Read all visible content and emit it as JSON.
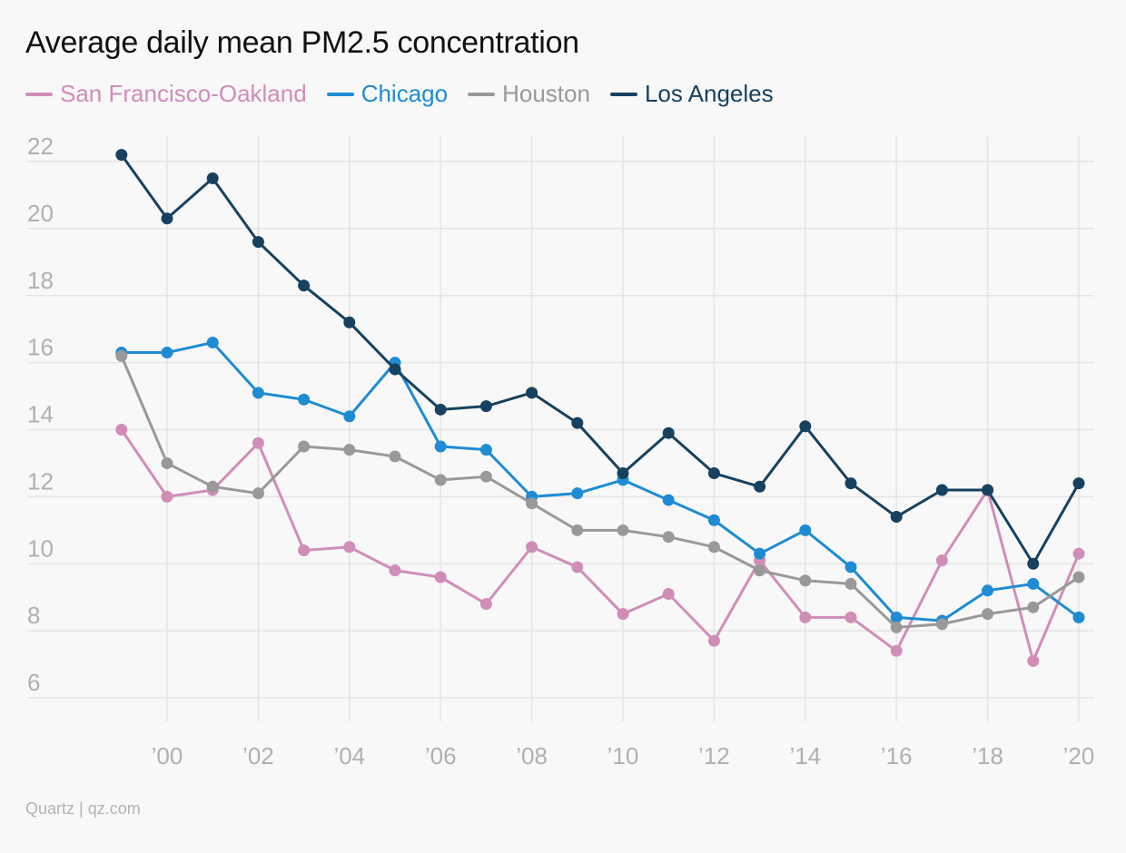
{
  "title": "Average daily mean PM2.5 concentration",
  "source": "Quartz | qz.com",
  "chart_data": {
    "type": "line",
    "title": "Average daily mean PM2.5 concentration",
    "xlabel": "",
    "ylabel": "",
    "x": [
      1999,
      2000,
      2001,
      2002,
      2003,
      2004,
      2005,
      2006,
      2007,
      2008,
      2009,
      2010,
      2011,
      2012,
      2013,
      2014,
      2015,
      2016,
      2017,
      2018,
      2019,
      2020
    ],
    "x_ticks": [
      2000,
      2002,
      2004,
      2006,
      2008,
      2010,
      2012,
      2014,
      2016,
      2018,
      2020
    ],
    "x_tick_labels": [
      "’00",
      "’02",
      "’04",
      "’06",
      "’08",
      "’10",
      "’12",
      "’14",
      "’16",
      "’18",
      "’20"
    ],
    "y_ticks": [
      6,
      8,
      10,
      12,
      14,
      16,
      18,
      20,
      22
    ],
    "ylim": [
      5.2,
      22.5
    ],
    "grid": true,
    "legend_position": "top",
    "series": [
      {
        "name": "San Francisco-Oakland",
        "color": "#d08db8",
        "values": [
          14.0,
          12.0,
          12.2,
          13.6,
          10.4,
          10.5,
          9.8,
          9.6,
          8.8,
          10.5,
          9.9,
          8.5,
          9.1,
          7.7,
          10.1,
          8.4,
          8.4,
          7.4,
          10.1,
          12.2,
          7.1,
          10.3
        ]
      },
      {
        "name": "Chicago",
        "color": "#1e8bd3",
        "values": [
          16.3,
          16.3,
          16.6,
          15.1,
          14.9,
          14.4,
          16.0,
          13.5,
          13.4,
          12.0,
          12.1,
          12.5,
          11.9,
          11.3,
          10.3,
          11.0,
          9.9,
          8.4,
          8.3,
          9.2,
          9.4,
          8.4
        ]
      },
      {
        "name": "Houston",
        "color": "#999999",
        "values": [
          16.2,
          13.0,
          12.3,
          12.1,
          13.5,
          13.4,
          13.2,
          12.5,
          12.6,
          11.8,
          11.0,
          11.0,
          10.8,
          10.5,
          9.8,
          9.5,
          9.4,
          8.1,
          8.2,
          8.5,
          8.7,
          9.6
        ]
      },
      {
        "name": "Los Angeles",
        "color": "#17415f",
        "values": [
          22.2,
          20.3,
          21.5,
          19.6,
          18.3,
          17.2,
          15.8,
          14.6,
          14.7,
          15.1,
          14.2,
          12.7,
          13.9,
          12.7,
          12.3,
          14.1,
          12.4,
          11.4,
          12.2,
          12.2,
          10.0,
          12.4
        ]
      }
    ]
  }
}
